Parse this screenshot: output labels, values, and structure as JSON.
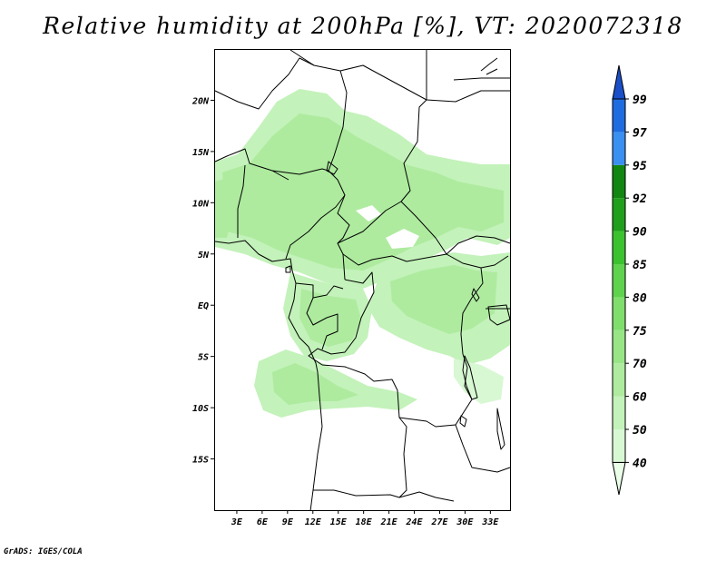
{
  "title": "Relative humidity at 200hPa [%], VT: 2020072318",
  "credit": "GrADS: IGES/COLA",
  "map": {
    "lat_ticks": [
      "20N",
      "15N",
      "10N",
      "5N",
      "EQ",
      "5S",
      "10S",
      "15S"
    ],
    "lat_values": [
      20,
      15,
      10,
      5,
      0,
      -5,
      -10,
      -15
    ],
    "lon_ticks": [
      "3E",
      "6E",
      "9E",
      "12E",
      "15E",
      "18E",
      "21E",
      "24E",
      "27E",
      "30E",
      "33E"
    ],
    "lon_values": [
      3,
      6,
      9,
      12,
      15,
      18,
      21,
      24,
      27,
      30,
      33
    ],
    "lat_range": [
      -20,
      25
    ],
    "lon_range": [
      0,
      35
    ]
  },
  "colorbar": {
    "levels": [
      "40",
      "50",
      "60",
      "70",
      "75",
      "80",
      "85",
      "90",
      "92",
      "95",
      "97",
      "99"
    ],
    "colors": [
      "#eaffe8",
      "#d8f8d3",
      "#c3f2ba",
      "#aeeb9f",
      "#98e586",
      "#7fde6c",
      "#5fd34e",
      "#3cc22f",
      "#209f1d",
      "#118611",
      "#3b8ff0",
      "#1f6ce0",
      "#1a4fc8"
    ]
  }
}
